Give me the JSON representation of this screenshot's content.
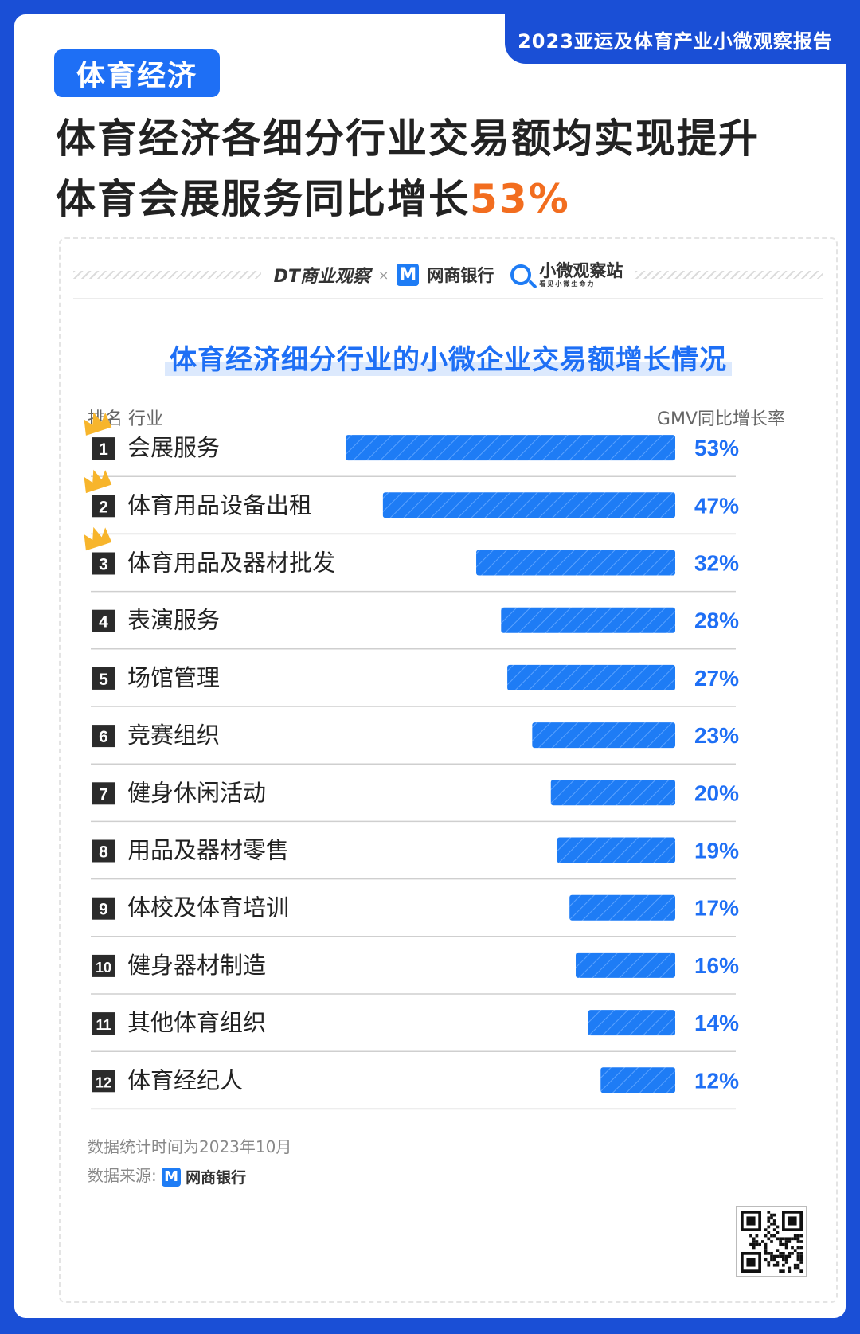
{
  "report_tab": "2023亚运及体育产业小微观察报告",
  "section_badge": "体育经济",
  "headline": {
    "line1": "体育经济各细分行业交易额均实现提升",
    "line2_prefix": "体育会展服务同比增长",
    "line2_accent": "53%"
  },
  "brands": {
    "dt": "DT商业观察",
    "x": "×",
    "m_glyph": "M",
    "mybank": "网商银行",
    "station": "小微观察站",
    "station_sub": "看见小微生命力"
  },
  "colors": {
    "brand_blue": "#1a4fd6",
    "bar_blue": "#1e7cf5",
    "accent_orange": "#f26d1f",
    "value_blue": "#1e6ff5",
    "crown": "#f7b52c"
  },
  "chart_data": {
    "type": "bar",
    "orientation": "horizontal",
    "title": "体育经济细分行业的小微企业交易额增长情况",
    "col_header_left": "排名 行业",
    "col_header_right": "GMV同比增长率",
    "unit": "%",
    "crowned_ranks": [
      1,
      2,
      3
    ],
    "rows": [
      {
        "rank": "1",
        "category": "会展服务",
        "value": 53,
        "label": "53%"
      },
      {
        "rank": "2",
        "category": "体育用品设备出租",
        "value": 47,
        "label": "47%"
      },
      {
        "rank": "3",
        "category": "体育用品及器材批发",
        "value": 32,
        "label": "32%"
      },
      {
        "rank": "4",
        "category": "表演服务",
        "value": 28,
        "label": "28%"
      },
      {
        "rank": "5",
        "category": "场馆管理",
        "value": 27,
        "label": "27%"
      },
      {
        "rank": "6",
        "category": "竞赛组织",
        "value": 23,
        "label": "23%"
      },
      {
        "rank": "7",
        "category": "健身休闲活动",
        "value": 20,
        "label": "20%"
      },
      {
        "rank": "8",
        "category": "用品及器材零售",
        "value": 19,
        "label": "19%"
      },
      {
        "rank": "9",
        "category": "体校及体育培训",
        "value": 17,
        "label": "17%"
      },
      {
        "rank": "10",
        "category": "健身器材制造",
        "value": 16,
        "label": "16%"
      },
      {
        "rank": "11",
        "category": "其他体育组织",
        "value": 14,
        "label": "14%"
      },
      {
        "rank": "12",
        "category": "体育经纪人",
        "value": 12,
        "label": "12%"
      }
    ]
  },
  "footer": {
    "stat_time": "数据统计时间为2023年10月",
    "source_label": "数据来源:",
    "source_brand": "网商银行"
  }
}
